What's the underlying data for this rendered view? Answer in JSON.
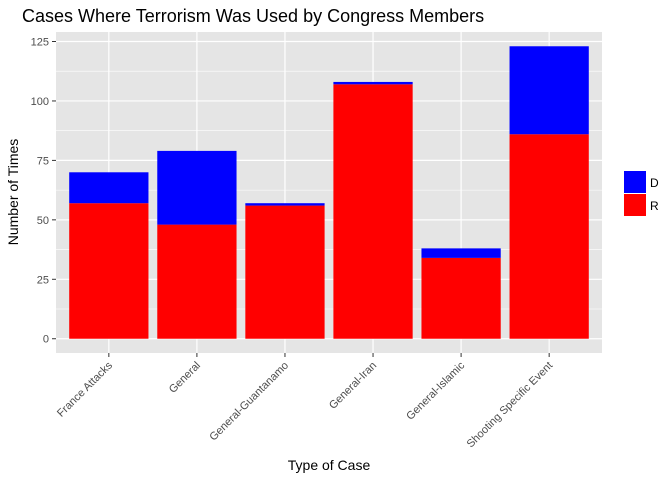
{
  "chart_data": {
    "type": "bar",
    "stacked": true,
    "title": "Cases Where Terrorism Was Used by Congress Members",
    "xlabel": "Type of Case",
    "ylabel": "Number of Times",
    "categories": [
      "France Attacks",
      "General",
      "General-Guantanamo",
      "General-Iran",
      "General-Islamic",
      "Shooting Specific Event"
    ],
    "series": [
      {
        "name": "R",
        "color": "#ff0000",
        "values": [
          57,
          48,
          56,
          107,
          34,
          86
        ]
      },
      {
        "name": "D",
        "color": "#0000ff",
        "values": [
          13,
          31,
          1,
          1,
          4,
          37
        ]
      }
    ],
    "ylim": [
      -6,
      129
    ],
    "yticks": [
      0,
      25,
      50,
      75,
      100,
      125
    ],
    "grid": true,
    "legend_position": "right",
    "panel_background": "#e5e5e5",
    "grid_color": "#ffffff"
  }
}
